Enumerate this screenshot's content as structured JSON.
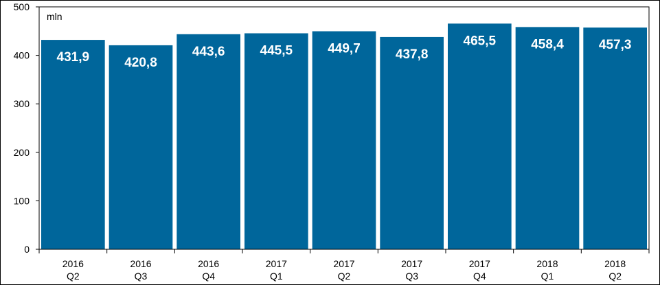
{
  "chart_data": {
    "type": "bar",
    "unit_label": "mln",
    "categories": [
      [
        "2016",
        "Q2"
      ],
      [
        "2016",
        "Q3"
      ],
      [
        "2016",
        "Q4"
      ],
      [
        "2017",
        "Q1"
      ],
      [
        "2017",
        "Q2"
      ],
      [
        "2017",
        "Q3"
      ],
      [
        "2017",
        "Q4"
      ],
      [
        "2018",
        "Q1"
      ],
      [
        "2018",
        "Q2"
      ]
    ],
    "values": [
      431.9,
      420.8,
      443.6,
      445.5,
      449.7,
      437.8,
      465.5,
      458.4,
      457.3
    ],
    "data_labels": [
      "431,9",
      "420,8",
      "443,6",
      "445,5",
      "449,7",
      "437,8",
      "465,5",
      "458,4",
      "457,3"
    ],
    "ylim": [
      0,
      500
    ],
    "yticks": [
      0,
      100,
      200,
      300,
      400,
      500
    ],
    "grid": false,
    "legend": "none",
    "bar_color": "#00669b"
  }
}
